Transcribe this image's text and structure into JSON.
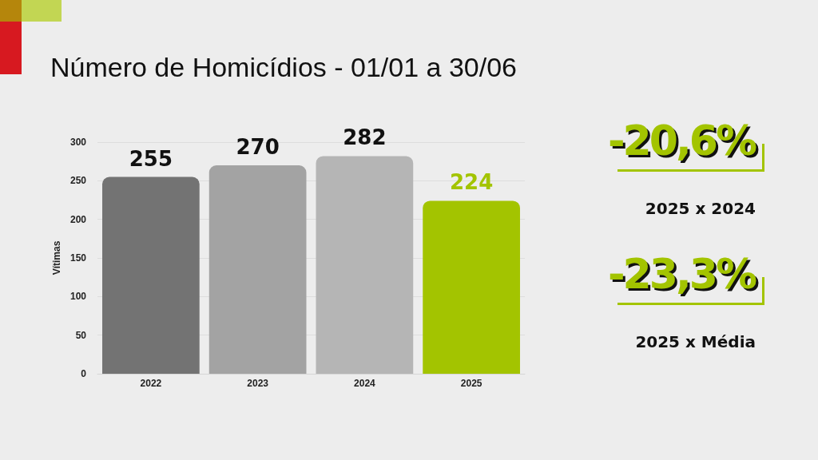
{
  "chart_data": {
    "type": "bar",
    "title": "Número de Homicídios - 01/01 a 30/06",
    "ylabel": "Vítimas",
    "categories": [
      "2022",
      "2023",
      "2024",
      "2025"
    ],
    "values": [
      255,
      270,
      282,
      224
    ],
    "colors": [
      "#737373",
      "#a3a3a3",
      "#b5b5b5",
      "#a3c400"
    ],
    "ylim": [
      0,
      300
    ],
    "yticks": [
      0,
      50,
      100,
      150,
      200,
      250,
      300
    ],
    "grid": "y",
    "data_labels": true,
    "annotations": [
      "-20,6%",
      "2025 x 2024",
      "-23,3%",
      "2025 x Média"
    ]
  }
}
